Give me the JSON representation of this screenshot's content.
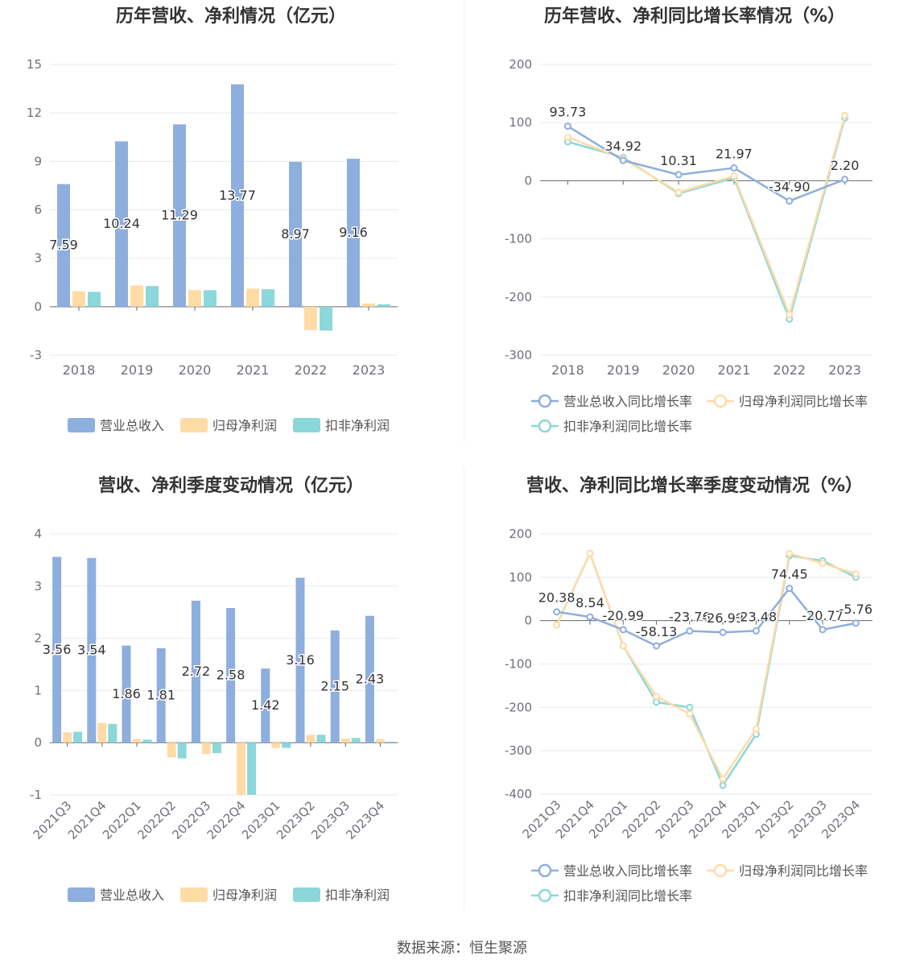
{
  "source_text": "数据来源：恒生聚源",
  "colors": {
    "revenue": "#8eaedd",
    "netprofit": "#ffdba6",
    "deducted": "#8bd7d9",
    "axis": "#666666",
    "grid": "#e6e9f0",
    "label": "#6e7079"
  },
  "chart_data": [
    {
      "type": "bar",
      "title": "历年营收、净利情况（亿元）",
      "categories": [
        "2018",
        "2019",
        "2020",
        "2021",
        "2022",
        "2023"
      ],
      "ylim": [
        -3,
        15
      ],
      "yticks": [
        15,
        12,
        9,
        6,
        3,
        0,
        -3
      ],
      "series": [
        {
          "name": "营业总收入",
          "color": "#8eaedd",
          "values": [
            7.59,
            10.24,
            11.29,
            13.77,
            8.97,
            9.16
          ],
          "labels": [
            "7.59",
            "10.24",
            "11.29",
            "13.77",
            "8.97",
            "9.16"
          ]
        },
        {
          "name": "归母净利润",
          "color": "#ffdba6",
          "values": [
            0.95,
            1.32,
            1.03,
            1.12,
            -1.45,
            0.2
          ]
        },
        {
          "name": "扣非净利润",
          "color": "#8bd7d9",
          "values": [
            0.92,
            1.28,
            1.02,
            1.08,
            -1.48,
            0.15
          ]
        }
      ]
    },
    {
      "type": "line",
      "title": "历年营收、净利同比增长率情况（%）",
      "categories": [
        "2018",
        "2019",
        "2020",
        "2021",
        "2022",
        "2023"
      ],
      "ylim": [
        -300,
        200
      ],
      "yticks": [
        200,
        100,
        0,
        -100,
        -200,
        -300
      ],
      "series": [
        {
          "name": "营业总收入同比增长率",
          "color": "#8eaedd",
          "values": [
            93.73,
            34.92,
            10.31,
            21.97,
            -34.9,
            2.2
          ],
          "labels": [
            "93.73",
            "34.92",
            "10.31",
            "21.97",
            "-34.90",
            "2.20"
          ]
        },
        {
          "name": "归母净利润同比增长率",
          "color": "#ffdba6",
          "values": [
            75,
            38,
            -20,
            8,
            -230,
            112
          ]
        },
        {
          "name": "扣非净利润同比增长率",
          "color": "#8bd7d9",
          "values": [
            67,
            40,
            -22,
            5,
            -238,
            108
          ]
        }
      ]
    },
    {
      "type": "bar",
      "title": "营收、净利季度变动情况（亿元）",
      "categories": [
        "2021Q3",
        "2021Q4",
        "2022Q1",
        "2022Q2",
        "2022Q3",
        "2022Q4",
        "2023Q1",
        "2023Q2",
        "2023Q3",
        "2023Q4"
      ],
      "ylim": [
        -1,
        4
      ],
      "yticks": [
        4,
        3,
        2,
        1,
        0,
        -1
      ],
      "series": [
        {
          "name": "营业总收入",
          "color": "#8eaedd",
          "values": [
            3.56,
            3.54,
            1.86,
            1.81,
            2.72,
            2.58,
            1.42,
            3.16,
            2.15,
            2.43
          ],
          "labels": [
            "3.56",
            "3.54",
            "1.86",
            "1.81",
            "2.72",
            "2.58",
            "1.42",
            "3.16",
            "2.15",
            "2.43"
          ]
        },
        {
          "name": "归母净利润",
          "color": "#ffdba6",
          "values": [
            0.2,
            0.38,
            0.07,
            -0.28,
            -0.22,
            -1.0,
            -0.1,
            0.15,
            0.08,
            0.07
          ]
        },
        {
          "name": "扣非净利润",
          "color": "#8bd7d9",
          "values": [
            0.21,
            0.36,
            0.06,
            -0.3,
            -0.2,
            -1.0,
            -0.1,
            0.15,
            0.09,
            0.02
          ]
        }
      ]
    },
    {
      "type": "line",
      "title": "营收、净利同比增长率季度变动情况（%）",
      "categories": [
        "2021Q3",
        "2021Q4",
        "2022Q1",
        "2022Q2",
        "2022Q3",
        "2022Q4",
        "2023Q1",
        "2023Q2",
        "2023Q3",
        "2023Q4"
      ],
      "ylim": [
        -400,
        200
      ],
      "yticks": [
        200,
        100,
        0,
        -100,
        -200,
        -300,
        -400
      ],
      "series": [
        {
          "name": "营业总收入同比增长率",
          "color": "#8eaedd",
          "values": [
            20.38,
            8.54,
            -20.99,
            -58.13,
            -23.76,
            -26.99,
            -23.48,
            74.45,
            -20.77,
            -5.76
          ],
          "labels": [
            "20.38",
            "8.54",
            "-20.99",
            "-58.13",
            "-23.76",
            "-26.99",
            "-23.48",
            "74.45",
            "-20.77",
            "-5.76"
          ]
        },
        {
          "name": "归母净利润同比增长率",
          "color": "#ffdba6",
          "values": [
            -10,
            155,
            -58,
            -175,
            -215,
            -365,
            -250,
            155,
            132,
            108
          ]
        },
        {
          "name": "扣非净利润同比增长率",
          "color": "#8bd7d9",
          "values": [
            -10,
            155,
            -58,
            -188,
            -200,
            -380,
            -262,
            150,
            138,
            100
          ]
        }
      ]
    }
  ]
}
